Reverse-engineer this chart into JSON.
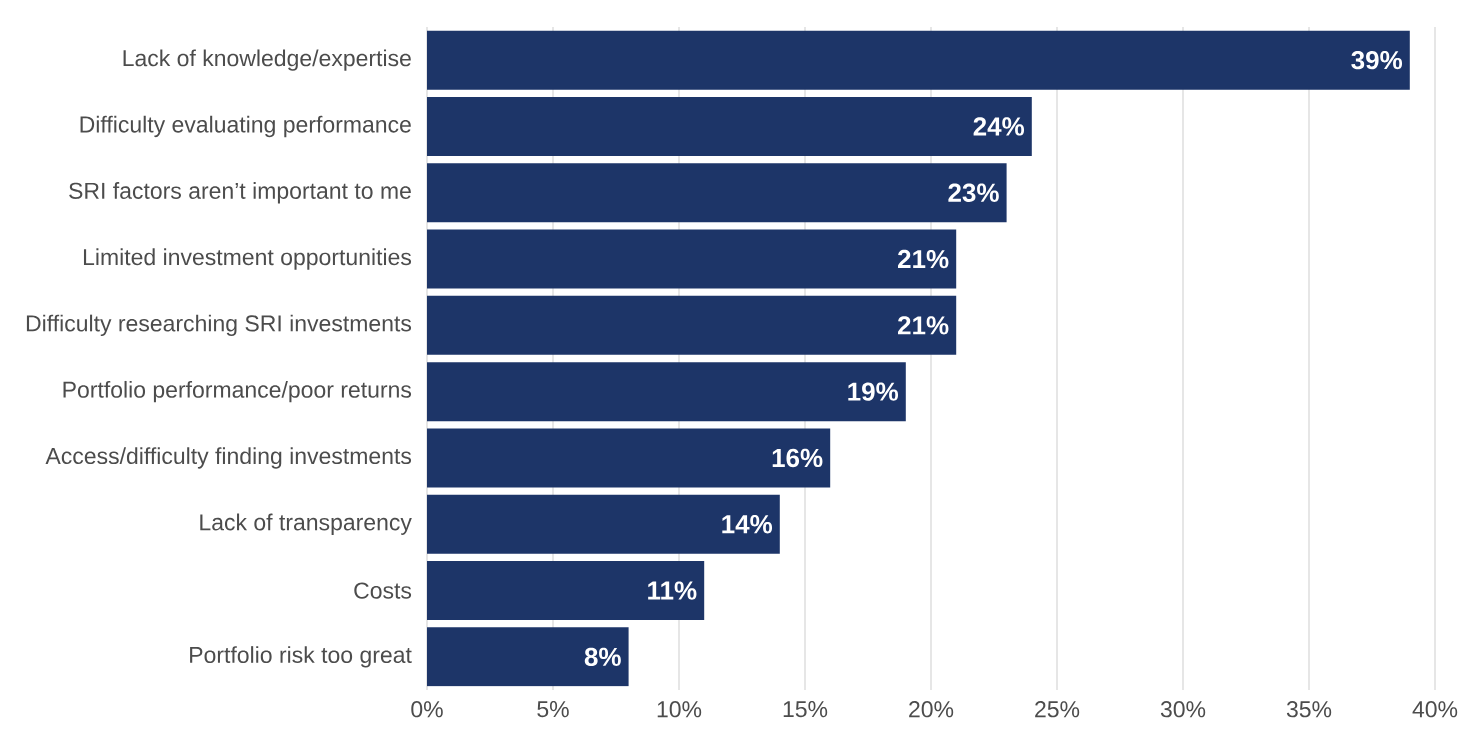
{
  "chart_data": {
    "type": "bar",
    "orientation": "horizontal",
    "categories": [
      "Lack of knowledge/expertise",
      "Difficulty evaluating performance",
      "SRI factors aren’t important to me",
      "Limited investment opportunities",
      "Difficulty researching SRI investments",
      "Portfolio performance/poor returns",
      "Access/difficulty finding investments",
      "Lack of transparency",
      "Costs",
      "Portfolio risk too great"
    ],
    "values": [
      39,
      24,
      23,
      21,
      21,
      19,
      16,
      14,
      11,
      8
    ],
    "value_labels": [
      "39%",
      "24%",
      "23%",
      "21%",
      "21%",
      "19%",
      "16%",
      "14%",
      "11%",
      "8%"
    ],
    "color": "#1d3568",
    "xlim": [
      0,
      40
    ],
    "xticks": [
      {
        "value": 0,
        "label": "0%"
      },
      {
        "value": 5,
        "label": "5%"
      },
      {
        "value": 10,
        "label": "10%"
      },
      {
        "value": 15,
        "label": "15%"
      },
      {
        "value": 20,
        "label": "20%"
      },
      {
        "value": 25,
        "label": "25%"
      },
      {
        "value": 30,
        "label": "30%"
      },
      {
        "value": 35,
        "label": "35%"
      },
      {
        "value": 40,
        "label": "40%"
      }
    ],
    "grid": "x"
  }
}
